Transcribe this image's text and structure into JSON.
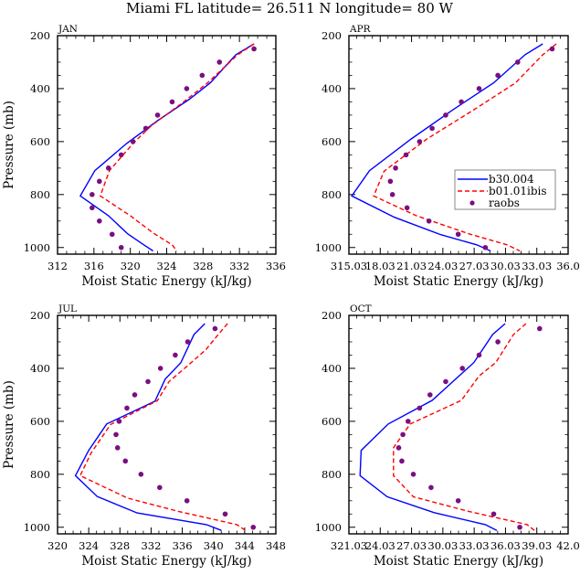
{
  "chart_data": {
    "type": "line",
    "title": "Miami FL  latitude= 26.511 N longitude= 80 W",
    "legend": {
      "placement": "center-right of APR panel",
      "entries": [
        {
          "label": "b30.004",
          "style": "solid line",
          "color": "#0000ff"
        },
        {
          "label": "b01.01ibis",
          "style": "dashed line",
          "color": "#ff0000"
        },
        {
          "label": "raobs",
          "style": "dot marker",
          "color": "#7b0f80"
        }
      ]
    },
    "panels": [
      {
        "name": "JAN",
        "xlabel": "Moist Static Energy (kJ/kg)",
        "ylabel": "Pressure (mb)",
        "xlim": [
          312,
          336
        ],
        "ylim": [
          1025,
          200
        ],
        "xticks": [
          312,
          316,
          320,
          324,
          328,
          332,
          336
        ],
        "xtick_labels": [
          "312",
          "316",
          "320",
          "324",
          "328",
          "332",
          "336"
        ],
        "yticks": [
          200,
          400,
          600,
          800,
          1000
        ],
        "yticks_labeled": true,
        "series": [
          {
            "name": "b30.004",
            "points": [
              [
                333.6,
                231
              ],
              [
                331.6,
                272
              ],
              [
                328.8,
                378
              ],
              [
                326.5,
                440
              ],
              [
                323.0,
                521
              ],
              [
                319.6,
                607
              ],
              [
                316.1,
                710
              ],
              [
                314.5,
                805
              ],
              [
                317.6,
                880
              ],
              [
                319.7,
                948
              ],
              [
                321.5,
                990
              ],
              [
                322.5,
                1013
              ]
            ]
          },
          {
            "name": "b01.01ibis",
            "points": [
              [
                333.6,
                231
              ],
              [
                331.8,
                272
              ],
              [
                328.5,
                378
              ],
              [
                325.8,
                452
              ],
              [
                322.3,
                540
              ],
              [
                320.3,
                607
              ],
              [
                317.7,
                710
              ],
              [
                316.7,
                805
              ],
              [
                320.0,
                880
              ],
              [
                322.5,
                945
              ],
              [
                324.6,
                990
              ],
              [
                325.1,
                1013
              ]
            ]
          },
          {
            "name": "raobs",
            "points": [
              [
                333.6,
                250
              ],
              [
                329.8,
                300
              ],
              [
                327.9,
                350
              ],
              [
                326.2,
                400
              ],
              [
                324.6,
                450
              ],
              [
                323.0,
                500
              ],
              [
                321.7,
                550
              ],
              [
                320.3,
                600
              ],
              [
                319.0,
                650
              ],
              [
                317.6,
                700
              ],
              [
                316.6,
                750
              ],
              [
                315.8,
                800
              ],
              [
                315.8,
                850
              ],
              [
                316.6,
                900
              ],
              [
                318.0,
                950
              ],
              [
                319.0,
                1000
              ]
            ]
          }
        ]
      },
      {
        "name": "APR",
        "xlabel": "Moist Static Energy (kJ/kg)",
        "ylabel": "",
        "xlim": [
          315.03,
          336.03
        ],
        "ylim": [
          1025,
          200
        ],
        "xticks": [
          315.03,
          318.03,
          321.03,
          324.03,
          327.03,
          330.03,
          333.03,
          336.03
        ],
        "xtick_labels": [
          "315.03",
          "18.03",
          "21.03",
          "24.03",
          "27.03",
          "30.03",
          "33.03",
          "36.0"
        ],
        "yticks": [
          200,
          400,
          600,
          800,
          1000
        ],
        "yticks_labeled": true,
        "has_legend": true,
        "series": [
          {
            "name": "b30.004",
            "points": [
              [
                333.6,
                231
              ],
              [
                331.9,
                272
              ],
              [
                328.9,
                378
              ],
              [
                325.0,
                480
              ],
              [
                321.0,
                590
              ],
              [
                317.0,
                710
              ],
              [
                315.3,
                805
              ],
              [
                319.4,
                886
              ],
              [
                323.8,
                951
              ],
              [
                327.3,
                990
              ],
              [
                328.6,
                1013
              ]
            ]
          },
          {
            "name": "b01.01ibis",
            "points": [
              [
                334.9,
                231
              ],
              [
                333.6,
                272
              ],
              [
                331.0,
                378
              ],
              [
                327.0,
                480
              ],
              [
                322.5,
                590
              ],
              [
                318.4,
                712
              ],
              [
                317.4,
                805
              ],
              [
                321.5,
                880
              ],
              [
                326.5,
                948
              ],
              [
                330.2,
                990
              ],
              [
                331.4,
                1013
              ]
            ]
          },
          {
            "name": "raobs",
            "points": [
              [
                334.5,
                250
              ],
              [
                331.2,
                300
              ],
              [
                329.3,
                350
              ],
              [
                327.5,
                400
              ],
              [
                325.8,
                450
              ],
              [
                324.3,
                500
              ],
              [
                323.0,
                550
              ],
              [
                321.8,
                600
              ],
              [
                320.5,
                650
              ],
              [
                319.5,
                700
              ],
              [
                319.0,
                750
              ],
              [
                319.2,
                800
              ],
              [
                320.6,
                850
              ],
              [
                322.7,
                900
              ],
              [
                325.5,
                950
              ],
              [
                328.1,
                1000
              ]
            ]
          }
        ]
      },
      {
        "name": "JUL",
        "xlabel": "Moist Static Energy (kJ/kg)",
        "ylabel": "Pressure (mb)",
        "xlim": [
          320,
          348
        ],
        "ylim": [
          1025,
          200
        ],
        "xticks": [
          320,
          324,
          328,
          332,
          336,
          340,
          344,
          348
        ],
        "xtick_labels": [
          "320",
          "324",
          "328",
          "332",
          "336",
          "340",
          "344",
          "348"
        ],
        "yticks": [
          200,
          400,
          600,
          800,
          1000
        ],
        "yticks_labeled": true,
        "series": [
          {
            "name": "b30.004",
            "points": [
              [
                338.9,
                231
              ],
              [
                337.5,
                272
              ],
              [
                335.8,
                379
              ],
              [
                333.8,
                441
              ],
              [
                332.5,
                524
              ],
              [
                326.3,
                610
              ],
              [
                324.0,
                710
              ],
              [
                322.3,
                805
              ],
              [
                325.1,
                884
              ],
              [
                330.2,
                946
              ],
              [
                339.1,
                990
              ],
              [
                341.0,
                1012
              ]
            ]
          },
          {
            "name": "b01.01ibis",
            "points": [
              [
                341.8,
                231
              ],
              [
                340.4,
                280
              ],
              [
                339.0,
                330
              ],
              [
                336.7,
                390
              ],
              [
                334.3,
                450
              ],
              [
                332.8,
                522
              ],
              [
                326.8,
                612
              ],
              [
                324.3,
                720
              ],
              [
                322.9,
                805
              ],
              [
                329.0,
                890
              ],
              [
                335.5,
                940
              ],
              [
                343.0,
                990
              ],
              [
                344.1,
                1012
              ]
            ]
          },
          {
            "name": "raobs",
            "points": [
              [
                340.2,
                250
              ],
              [
                336.7,
                300
              ],
              [
                335.1,
                350
              ],
              [
                333.2,
                400
              ],
              [
                331.6,
                450
              ],
              [
                329.9,
                500
              ],
              [
                328.9,
                550
              ],
              [
                327.9,
                600
              ],
              [
                327.5,
                650
              ],
              [
                327.7,
                700
              ],
              [
                328.7,
                750
              ],
              [
                330.7,
                800
              ],
              [
                333.1,
                850
              ],
              [
                336.6,
                900
              ],
              [
                341.5,
                950
              ],
              [
                345.1,
                1000
              ]
            ]
          }
        ]
      },
      {
        "name": "OCT",
        "xlabel": "Moist Static Energy (kJ/kg)",
        "ylabel": "",
        "xlim": [
          321.03,
          342.03
        ],
        "ylim": [
          1025,
          200
        ],
        "xticks": [
          321.03,
          324.03,
          327.03,
          330.03,
          333.03,
          336.03,
          339.03,
          342.03
        ],
        "xtick_labels": [
          "321.03",
          "24.03",
          "27.03",
          "30.03",
          "33.03",
          "36.03",
          "39.03",
          "42.0"
        ],
        "yticks": [
          200,
          400,
          600,
          800,
          1000
        ],
        "yticks_labeled": true,
        "series": [
          {
            "name": "b30.004",
            "points": [
              [
                336.0,
                231
              ],
              [
                334.8,
                272
              ],
              [
                333.0,
                378
              ],
              [
                329.0,
                521
              ],
              [
                324.8,
                610
              ],
              [
                322.2,
                710
              ],
              [
                322.1,
                805
              ],
              [
                324.7,
                885
              ],
              [
                329.2,
                945
              ],
              [
                334.1,
                990
              ],
              [
                335.2,
                1012
              ]
            ]
          },
          {
            "name": "b01.01ibis",
            "points": [
              [
                338.0,
                231
              ],
              [
                336.8,
                272
              ],
              [
                335.1,
                378
              ],
              [
                333.5,
                429
              ],
              [
                331.8,
                521
              ],
              [
                326.9,
                610
              ],
              [
                325.3,
                700
              ],
              [
                325.3,
                805
              ],
              [
                327.2,
                885
              ],
              [
                332.5,
                940
              ],
              [
                338.1,
                990
              ],
              [
                338.8,
                1012
              ]
            ]
          },
          {
            "name": "raobs",
            "points": [
              [
                339.3,
                250
              ],
              [
                335.3,
                300
              ],
              [
                333.5,
                350
              ],
              [
                331.9,
                400
              ],
              [
                330.3,
                450
              ],
              [
                328.8,
                500
              ],
              [
                327.8,
                550
              ],
              [
                326.7,
                600
              ],
              [
                326.2,
                650
              ],
              [
                325.8,
                700
              ],
              [
                326.1,
                750
              ],
              [
                327.2,
                800
              ],
              [
                328.9,
                850
              ],
              [
                331.5,
                900
              ],
              [
                334.9,
                950
              ],
              [
                337.4,
                1000
              ]
            ]
          }
        ]
      }
    ]
  }
}
